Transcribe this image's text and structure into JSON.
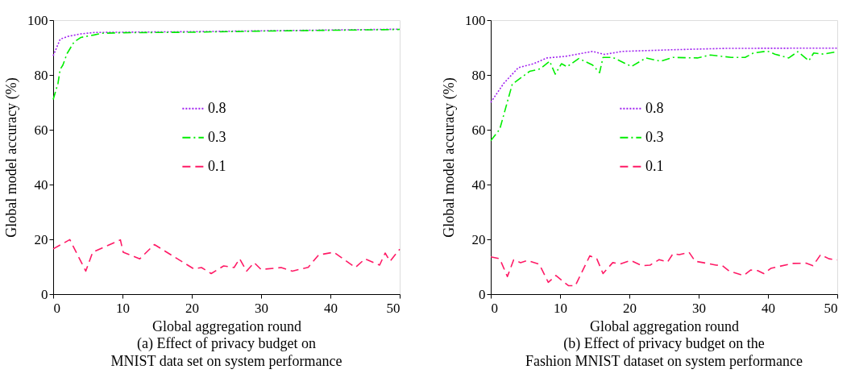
{
  "chart_data": [
    {
      "type": "line",
      "xlabel": "Global aggregation round",
      "ylabel": "Global model accuracy (%)",
      "annotations": [
        "(a) Effect of privacy budget on",
        "MNIST data set on system performance"
      ],
      "xlim": [
        0,
        50
      ],
      "ylim": [
        0,
        100
      ],
      "xticks": [
        0,
        10,
        20,
        30,
        40,
        50
      ],
      "yticks": [
        0,
        20,
        40,
        60,
        80,
        100
      ],
      "grid": false,
      "legend": "center",
      "marker": "none",
      "series": [
        {
          "name": "0.8",
          "color": "#a020f0",
          "line_style": "dotted",
          "x": [
            0,
            1,
            2,
            4,
            6,
            10,
            20,
            30,
            40,
            50
          ],
          "values": [
            87,
            93,
            94,
            95,
            95.5,
            95.6,
            95.8,
            96.1,
            96.4,
            96.7
          ]
        },
        {
          "name": "0.3",
          "color": "#00ee00",
          "line_style": "dashdot",
          "x": [
            0,
            0.7,
            1,
            1.4,
            2,
            3,
            4,
            5.9,
            7,
            10,
            20,
            30,
            40,
            50
          ],
          "values": [
            71,
            77,
            82,
            83.6,
            87.8,
            92,
            93.7,
            94.6,
            95.2,
            95.4,
            95.6,
            96,
            96.3,
            96.6
          ]
        },
        {
          "name": "0.1",
          "color": "#ff1a66",
          "line_style": "dashed",
          "x": [
            0,
            2.4,
            4.7,
            5.7,
            9.7,
            10.1,
            12.5,
            14.6,
            20.3,
            21.4,
            22.8,
            24.6,
            26.1,
            26.9,
            27.9,
            29,
            30,
            32.9,
            34.5,
            36.8,
            38.3,
            40.5,
            43.6,
            45,
            47.1,
            47.9,
            48.6,
            50
          ],
          "values": [
            16.5,
            19.9,
            8.4,
            15.3,
            19.8,
            15.3,
            12.9,
            18.1,
            9.2,
            9.7,
            7.5,
            10.3,
            9.7,
            12.9,
            8.4,
            11.5,
            9,
            9.7,
            8.4,
            9.8,
            14.3,
            15.3,
            9.7,
            12.9,
            10.6,
            15,
            12,
            16.4
          ]
        }
      ]
    },
    {
      "type": "line",
      "xlabel": "Global aggregation round",
      "ylabel": "Global model accuracy (%)",
      "annotations": [
        "(b) Effect of privacy budget on the",
        "Fashion MNIST dataset on system performance"
      ],
      "xlim": [
        0,
        50
      ],
      "ylim": [
        0,
        100
      ],
      "xticks": [
        0,
        10,
        20,
        30,
        40,
        50
      ],
      "yticks": [
        0,
        20,
        40,
        60,
        80,
        100
      ],
      "grid": false,
      "legend": "center",
      "marker": "none",
      "series": [
        {
          "name": "0.8",
          "color": "#a020f0",
          "line_style": "dotted",
          "x": [
            0,
            1.9,
            4,
            6.2,
            8.1,
            10.8,
            14.7,
            16.4,
            19,
            26.3,
            34,
            50
          ],
          "values": [
            70,
            77,
            82.7,
            84.1,
            86.2,
            86.8,
            88.6,
            87.5,
            88.6,
            89.2,
            89.7,
            89.8
          ]
        },
        {
          "name": "0.3",
          "color": "#00ee00",
          "line_style": "dashdot",
          "x": [
            0,
            1.3,
            3.1,
            5.6,
            7.1,
            8.5,
            9.3,
            10.2,
            11,
            12.7,
            14.7,
            15.7,
            16.2,
            17.6,
            20.3,
            22.4,
            24.5,
            26.3,
            29.8,
            31.7,
            34.7,
            36.7,
            37.9,
            39.9,
            41,
            43,
            44.3,
            45.9,
            46.6,
            48,
            50
          ],
          "values": [
            56,
            60.2,
            76.6,
            81.3,
            82.2,
            85,
            80.3,
            84.1,
            83,
            86,
            83.6,
            80.8,
            86.4,
            86.4,
            83.1,
            86.2,
            85,
            86.4,
            86.2,
            87.3,
            86.4,
            86.4,
            88,
            88.7,
            87.6,
            86.2,
            88.5,
            85.2,
            88,
            87.6,
            88.5
          ]
        },
        {
          "name": "0.1",
          "color": "#ff1a66",
          "line_style": "dashed",
          "x": [
            0,
            1.3,
            2.4,
            3.3,
            4.3,
            5.3,
            7,
            8.3,
            9.4,
            11.2,
            12.2,
            14.3,
            15.3,
            16.2,
            17.6,
            18.7,
            20.2,
            21.8,
            23,
            24.3,
            25.5,
            26.3,
            27.2,
            28.6,
            29.5,
            31.1,
            32.5,
            33.4,
            34.4,
            36.5,
            37.5,
            38.5,
            39.4,
            40.4,
            41.6,
            43.5,
            45.5,
            46.5,
            47.6,
            48.8,
            50
          ],
          "values": [
            13.6,
            12.9,
            6.4,
            12.5,
            11.5,
            12.3,
            10.9,
            4.3,
            6.8,
            3.1,
            3.1,
            14,
            12.9,
            7.5,
            11.5,
            11,
            12.3,
            10.4,
            10.6,
            12.6,
            11.7,
            14.8,
            14.4,
            15.3,
            12,
            11.3,
            10.6,
            10.4,
            8.4,
            6.8,
            8.8,
            8.6,
            7.5,
            9.4,
            10.1,
            11.2,
            11.3,
            10.4,
            14.4,
            12.9,
            12.5
          ]
        }
      ]
    }
  ]
}
